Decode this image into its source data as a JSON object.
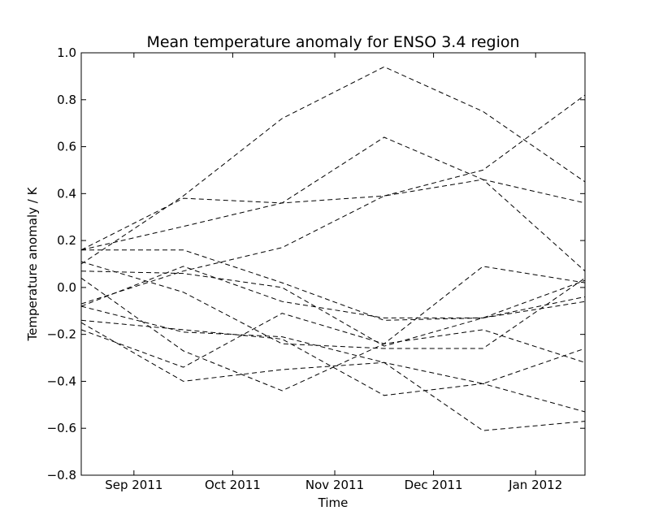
{
  "chart_data": {
    "type": "line",
    "title": "Mean temperature anomaly for ENSO 3.4 region",
    "xlabel": "Time",
    "ylabel": "Temperature anomaly / K",
    "x": [
      "2011-08-16",
      "2011-09-16",
      "2011-10-16",
      "2011-11-16",
      "2011-12-16",
      "2012-01-16"
    ],
    "xlim": [
      "2011-08-16",
      "2012-01-16"
    ],
    "ylim": [
      -0.8,
      1.0
    ],
    "yticks": [
      -0.8,
      -0.6,
      -0.4,
      -0.2,
      0.0,
      0.2,
      0.4,
      0.6,
      0.8,
      1.0
    ],
    "ytick_labels": [
      "−0.8",
      "−0.6",
      "−0.4",
      "−0.2",
      "0.0",
      "0.2",
      "0.4",
      "0.6",
      "0.8",
      "1.0"
    ],
    "xticks": [
      "2011-09-01",
      "2011-10-01",
      "2011-11-01",
      "2011-12-01",
      "2012-01-01"
    ],
    "xtick_labels": [
      "Sep 2011",
      "Oct 2011",
      "Nov 2011",
      "Dec 2011",
      "Jan 2012"
    ],
    "line_style": "dashed",
    "line_color": "#000000",
    "grid": false,
    "series": [
      {
        "values": [
          0.1,
          0.39,
          0.72,
          0.94,
          0.75,
          0.45
        ]
      },
      {
        "values": [
          0.16,
          0.26,
          0.36,
          0.39,
          0.5,
          0.82
        ]
      },
      {
        "values": [
          -0.07,
          0.07,
          0.17,
          0.39,
          0.46,
          0.36
        ]
      },
      {
        "values": [
          0.16,
          0.38,
          0.36,
          0.64,
          0.46,
          0.07
        ]
      },
      {
        "values": [
          0.16,
          0.16,
          0.02,
          -0.14,
          -0.13,
          0.03
        ]
      },
      {
        "values": [
          0.07,
          0.06,
          0.0,
          -0.25,
          -0.13,
          -0.06
        ]
      },
      {
        "values": [
          -0.08,
          0.09,
          -0.06,
          -0.13,
          -0.13,
          -0.04
        ]
      },
      {
        "values": [
          0.11,
          -0.02,
          -0.24,
          -0.26,
          -0.26,
          0.04
        ]
      },
      {
        "values": [
          -0.18,
          -0.34,
          -0.11,
          -0.24,
          0.09,
          0.02
        ]
      },
      {
        "values": [
          -0.15,
          -0.4,
          -0.35,
          -0.32,
          -0.41,
          -0.26
        ]
      },
      {
        "values": [
          -0.08,
          -0.19,
          -0.21,
          -0.32,
          -0.61,
          -0.57
        ]
      },
      {
        "values": [
          0.04,
          -0.27,
          -0.44,
          -0.24,
          -0.18,
          -0.32
        ]
      },
      {
        "values": [
          -0.14,
          -0.18,
          -0.22,
          -0.46,
          -0.41,
          -0.53
        ]
      }
    ]
  }
}
